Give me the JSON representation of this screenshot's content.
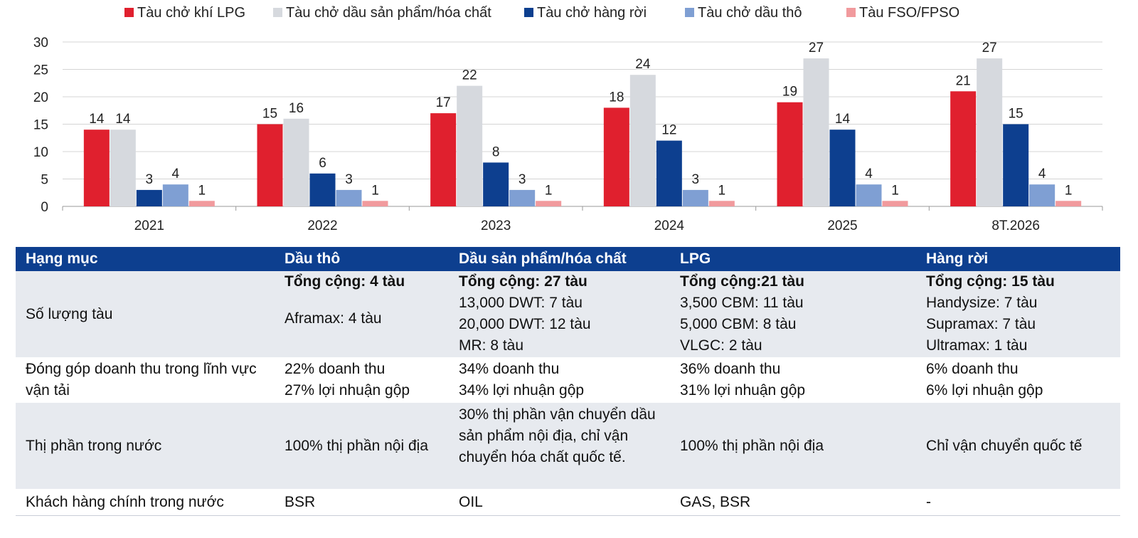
{
  "chart_data": {
    "type": "bar",
    "categories": [
      "2021",
      "2022",
      "2023",
      "2024",
      "2025",
      "8T.2026"
    ],
    "series": [
      {
        "name": "Tàu chở khí LPG",
        "color": "#e0202e",
        "values": [
          14,
          15,
          17,
          18,
          19,
          21
        ]
      },
      {
        "name": "Tàu chở dầu sản phẩm/hóa chất",
        "color": "#d6d9de",
        "values": [
          14,
          16,
          22,
          24,
          27,
          27
        ]
      },
      {
        "name": "Tàu chở hàng rời",
        "color": "#0d3f8f",
        "values": [
          3,
          6,
          8,
          12,
          14,
          15
        ]
      },
      {
        "name": "Tàu chở dầu thô",
        "color": "#7f9fd3",
        "values": [
          4,
          3,
          3,
          3,
          4,
          4
        ]
      },
      {
        "name": "Tàu FSO/FPSO",
        "color": "#f19a9d",
        "values": [
          1,
          1,
          1,
          1,
          1,
          1
        ]
      }
    ],
    "yticks": [
      "0",
      "5",
      "10",
      "15",
      "20",
      "25",
      "30"
    ],
    "ylim": [
      0,
      30
    ],
    "grid": true,
    "legend_position": "top"
  },
  "table": {
    "headers": [
      "Hạng mục",
      "Dầu thô",
      "Dầu sản phẩm/hóa chất",
      "LPG",
      "Hàng rời"
    ],
    "rows": [
      {
        "label": "Số lượng tàu",
        "totals": [
          "Tổng cộng: 4 tàu",
          "Tổng cộng: 27 tàu",
          "Tổng cộng:21 tàu",
          "Tổng cộng: 15 tàu"
        ],
        "details": [
          [
            "Aframax: 4 tàu"
          ],
          [
            "13,000 DWT: 7 tàu",
            "20,000 DWT: 12 tàu",
            "MR: 8 tàu"
          ],
          [
            "3,500 CBM: 11 tàu",
            "5,000 CBM: 8 tàu",
            "VLGC: 2 tàu"
          ],
          [
            "Handysize: 7 tàu",
            "Supramax: 7 tàu",
            "Ultramax: 1 tàu"
          ]
        ]
      },
      {
        "label": "Đóng góp doanh thu trong lĩnh vực vận tải",
        "cells": [
          [
            "22% doanh thu",
            "27% lợi nhuận gộp"
          ],
          [
            "34% doanh thu",
            "34% lợi nhuận gộp"
          ],
          [
            "36% doanh thu",
            "31% lợi nhuận gộp"
          ],
          [
            "6% doanh thu",
            "6% lợi nhuận gộp"
          ]
        ]
      },
      {
        "label": "Thị phần trong nước",
        "cells": [
          "100% thị phần nội địa",
          "30% thị phần vận chuyển dầu sản phẩm nội địa, chỉ vận chuyển hóa chất quốc tế.",
          "100% thị phần nội địa",
          "Chỉ vận chuyển quốc tế"
        ]
      },
      {
        "label": "Khách hàng chính trong nước",
        "cells": [
          "BSR",
          "OIL",
          "GAS, BSR",
          "-"
        ]
      }
    ]
  }
}
